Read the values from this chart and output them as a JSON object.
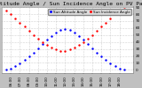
{
  "title": "Sun Altitude Angle / Sun Incidence Angle on PV Panels",
  "bg_color": "#c0c0c0",
  "plot_bg": "#ffffff",
  "grid_color": "#aaaaaa",
  "ylim": [
    -5,
    90
  ],
  "yticks": [
    0,
    10,
    20,
    30,
    40,
    50,
    60,
    70,
    80,
    90
  ],
  "legend_blue": "Sun Altitude Angle",
  "legend_red": "Sun Incidence Angle",
  "blue_color": "#0000ff",
  "red_color": "#ff0000",
  "blue_x": [
    5.5,
    6.0,
    6.5,
    7.0,
    7.5,
    8.0,
    8.5,
    9.0,
    9.5,
    10.0,
    10.5,
    11.0,
    11.5,
    12.0,
    12.5,
    13.0,
    13.5,
    14.0,
    14.5,
    15.0,
    15.5,
    16.0,
    16.5,
    17.0,
    17.5,
    18.0,
    18.5
  ],
  "blue_y": [
    0,
    2,
    5,
    9,
    14,
    19,
    25,
    31,
    37,
    43,
    48,
    53,
    57,
    58,
    57,
    53,
    48,
    43,
    37,
    31,
    25,
    19,
    14,
    9,
    5,
    2,
    0
  ],
  "red_x": [
    5.5,
    6.0,
    6.5,
    7.0,
    7.5,
    8.0,
    8.5,
    9.0,
    9.5,
    10.0,
    10.5,
    11.0,
    11.5,
    12.0,
    12.5,
    13.0,
    13.5,
    14.0,
    14.5,
    15.0,
    15.5,
    16.0,
    16.5,
    17.0,
    17.5,
    18.0,
    18.5
  ],
  "red_y": [
    85,
    80,
    74,
    68,
    62,
    56,
    50,
    45,
    40,
    36,
    32,
    29,
    27,
    27,
    29,
    32,
    36,
    40,
    45,
    50,
    56,
    62,
    68,
    74,
    80,
    85,
    88
  ],
  "xtick_vals": [
    6,
    7,
    8,
    9,
    10,
    11,
    12,
    13,
    14,
    15,
    16,
    17,
    18
  ],
  "xtick_labels": [
    "06:00",
    "07:00",
    "08:00",
    "09:00",
    "10:00",
    "11:00",
    "12:00",
    "13:00",
    "14:00",
    "15:00",
    "16:00",
    "17:00",
    "18:00"
  ],
  "title_fontsize": 4.5,
  "tick_fontsize": 3.0,
  "legend_fontsize": 3.0,
  "marker_size": 1.5
}
